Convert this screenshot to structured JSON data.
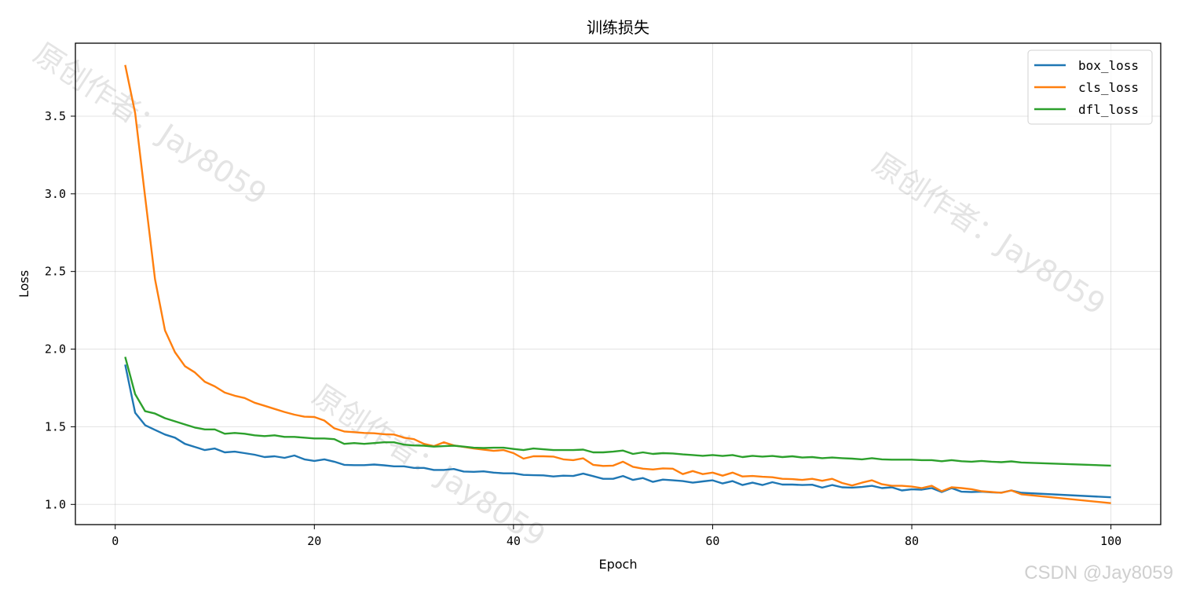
{
  "chart_data": {
    "type": "line",
    "title": "训练损失",
    "xlabel": "Epoch",
    "ylabel": "Loss",
    "xlim": [
      -4,
      105
    ],
    "ylim": [
      0.87,
      3.97
    ],
    "xticks": [
      0,
      20,
      40,
      60,
      80,
      100
    ],
    "yticks": [
      1.0,
      1.5,
      2.0,
      2.5,
      3.0,
      3.5
    ],
    "grid": true,
    "legend_position": "top-right",
    "series": [
      {
        "name": "box_loss",
        "color": "#1f77b4",
        "x": [
          1,
          2,
          3,
          4,
          5,
          6,
          7,
          8,
          9,
          10,
          11,
          12,
          13,
          14,
          15,
          16,
          17,
          18,
          19,
          20,
          21,
          22,
          23,
          24,
          25,
          26,
          27,
          28,
          29,
          30,
          31,
          32,
          33,
          34,
          35,
          36,
          37,
          38,
          39,
          40,
          41,
          42,
          43,
          44,
          45,
          46,
          47,
          48,
          49,
          50,
          51,
          52,
          53,
          54,
          55,
          56,
          57,
          58,
          59,
          60,
          61,
          62,
          63,
          64,
          65,
          66,
          67,
          68,
          69,
          70,
          71,
          72,
          73,
          74,
          75,
          76,
          77,
          78,
          79,
          80,
          81,
          82,
          83,
          84,
          85,
          86,
          87,
          88,
          89,
          90,
          91,
          100
        ],
        "values": [
          1.9,
          1.59,
          1.51,
          1.48,
          1.45,
          1.43,
          1.39,
          1.37,
          1.35,
          1.36,
          1.335,
          1.34,
          1.33,
          1.32,
          1.305,
          1.31,
          1.3,
          1.315,
          1.29,
          1.28,
          1.29,
          1.275,
          1.255,
          1.253,
          1.253,
          1.257,
          1.252,
          1.245,
          1.245,
          1.235,
          1.235,
          1.222,
          1.222,
          1.228,
          1.212,
          1.21,
          1.213,
          1.205,
          1.2,
          1.2,
          1.19,
          1.188,
          1.187,
          1.18,
          1.185,
          1.183,
          1.198,
          1.182,
          1.165,
          1.165,
          1.183,
          1.158,
          1.17,
          1.145,
          1.16,
          1.155,
          1.15,
          1.14,
          1.148,
          1.155,
          1.135,
          1.15,
          1.125,
          1.14,
          1.125,
          1.143,
          1.128,
          1.128,
          1.125,
          1.127,
          1.108,
          1.125,
          1.11,
          1.108,
          1.112,
          1.12,
          1.105,
          1.11,
          1.09,
          1.097,
          1.095,
          1.105,
          1.08,
          1.105,
          1.082,
          1.08,
          1.082,
          1.078,
          1.076,
          1.09,
          1.075,
          1.046
        ]
      },
      {
        "name": "cls_loss",
        "color": "#ff7f0e",
        "x": [
          1,
          2,
          3,
          4,
          5,
          6,
          7,
          8,
          9,
          10,
          11,
          12,
          13,
          14,
          15,
          16,
          17,
          18,
          19,
          20,
          21,
          22,
          23,
          24,
          25,
          26,
          27,
          28,
          29,
          30,
          31,
          32,
          33,
          34,
          35,
          36,
          37,
          38,
          39,
          40,
          41,
          42,
          43,
          44,
          45,
          46,
          47,
          48,
          49,
          50,
          51,
          52,
          53,
          54,
          55,
          56,
          57,
          58,
          59,
          60,
          61,
          62,
          63,
          64,
          65,
          66,
          67,
          68,
          69,
          70,
          71,
          72,
          73,
          74,
          75,
          76,
          77,
          78,
          79,
          80,
          81,
          82,
          83,
          84,
          85,
          86,
          87,
          88,
          89,
          90,
          91,
          100
        ],
        "values": [
          3.83,
          3.52,
          2.98,
          2.45,
          2.12,
          1.98,
          1.89,
          1.85,
          1.79,
          1.76,
          1.72,
          1.7,
          1.685,
          1.655,
          1.635,
          1.615,
          1.595,
          1.578,
          1.565,
          1.563,
          1.54,
          1.49,
          1.47,
          1.465,
          1.46,
          1.458,
          1.452,
          1.45,
          1.43,
          1.42,
          1.39,
          1.375,
          1.4,
          1.38,
          1.37,
          1.36,
          1.353,
          1.345,
          1.35,
          1.33,
          1.295,
          1.31,
          1.31,
          1.308,
          1.29,
          1.285,
          1.297,
          1.255,
          1.248,
          1.25,
          1.275,
          1.242,
          1.23,
          1.225,
          1.232,
          1.23,
          1.195,
          1.215,
          1.195,
          1.205,
          1.185,
          1.205,
          1.18,
          1.183,
          1.178,
          1.175,
          1.165,
          1.163,
          1.158,
          1.165,
          1.152,
          1.165,
          1.138,
          1.122,
          1.14,
          1.155,
          1.13,
          1.12,
          1.12,
          1.115,
          1.105,
          1.12,
          1.085,
          1.11,
          1.105,
          1.098,
          1.085,
          1.08,
          1.075,
          1.09,
          1.065,
          1.008
        ]
      },
      {
        "name": "dfl_loss",
        "color": "#2ca02c",
        "x": [
          1,
          2,
          3,
          4,
          5,
          6,
          7,
          8,
          9,
          10,
          11,
          12,
          13,
          14,
          15,
          16,
          17,
          18,
          19,
          20,
          21,
          22,
          23,
          24,
          25,
          26,
          27,
          28,
          29,
          30,
          31,
          32,
          33,
          34,
          35,
          36,
          37,
          38,
          39,
          40,
          41,
          42,
          43,
          44,
          45,
          46,
          47,
          48,
          49,
          50,
          51,
          52,
          53,
          54,
          55,
          56,
          57,
          58,
          59,
          60,
          61,
          62,
          63,
          64,
          65,
          66,
          67,
          68,
          69,
          70,
          71,
          72,
          73,
          74,
          75,
          76,
          77,
          78,
          79,
          80,
          81,
          82,
          83,
          84,
          85,
          86,
          87,
          88,
          89,
          90,
          91,
          100
        ],
        "values": [
          1.95,
          1.71,
          1.6,
          1.585,
          1.555,
          1.535,
          1.515,
          1.495,
          1.483,
          1.483,
          1.455,
          1.46,
          1.455,
          1.445,
          1.44,
          1.445,
          1.435,
          1.435,
          1.43,
          1.425,
          1.425,
          1.42,
          1.39,
          1.395,
          1.39,
          1.395,
          1.4,
          1.4,
          1.385,
          1.38,
          1.378,
          1.372,
          1.375,
          1.378,
          1.372,
          1.365,
          1.363,
          1.365,
          1.365,
          1.357,
          1.35,
          1.36,
          1.355,
          1.35,
          1.35,
          1.35,
          1.353,
          1.335,
          1.335,
          1.34,
          1.347,
          1.325,
          1.335,
          1.325,
          1.33,
          1.328,
          1.322,
          1.318,
          1.313,
          1.318,
          1.312,
          1.318,
          1.305,
          1.313,
          1.308,
          1.312,
          1.305,
          1.31,
          1.302,
          1.305,
          1.298,
          1.302,
          1.298,
          1.295,
          1.29,
          1.298,
          1.29,
          1.288,
          1.288,
          1.288,
          1.285,
          1.285,
          1.278,
          1.285,
          1.278,
          1.275,
          1.28,
          1.275,
          1.272,
          1.277,
          1.27,
          1.25
        ]
      }
    ]
  },
  "watermark": "原创作者：Jay8059",
  "credit": "CSDN @Jay8059"
}
